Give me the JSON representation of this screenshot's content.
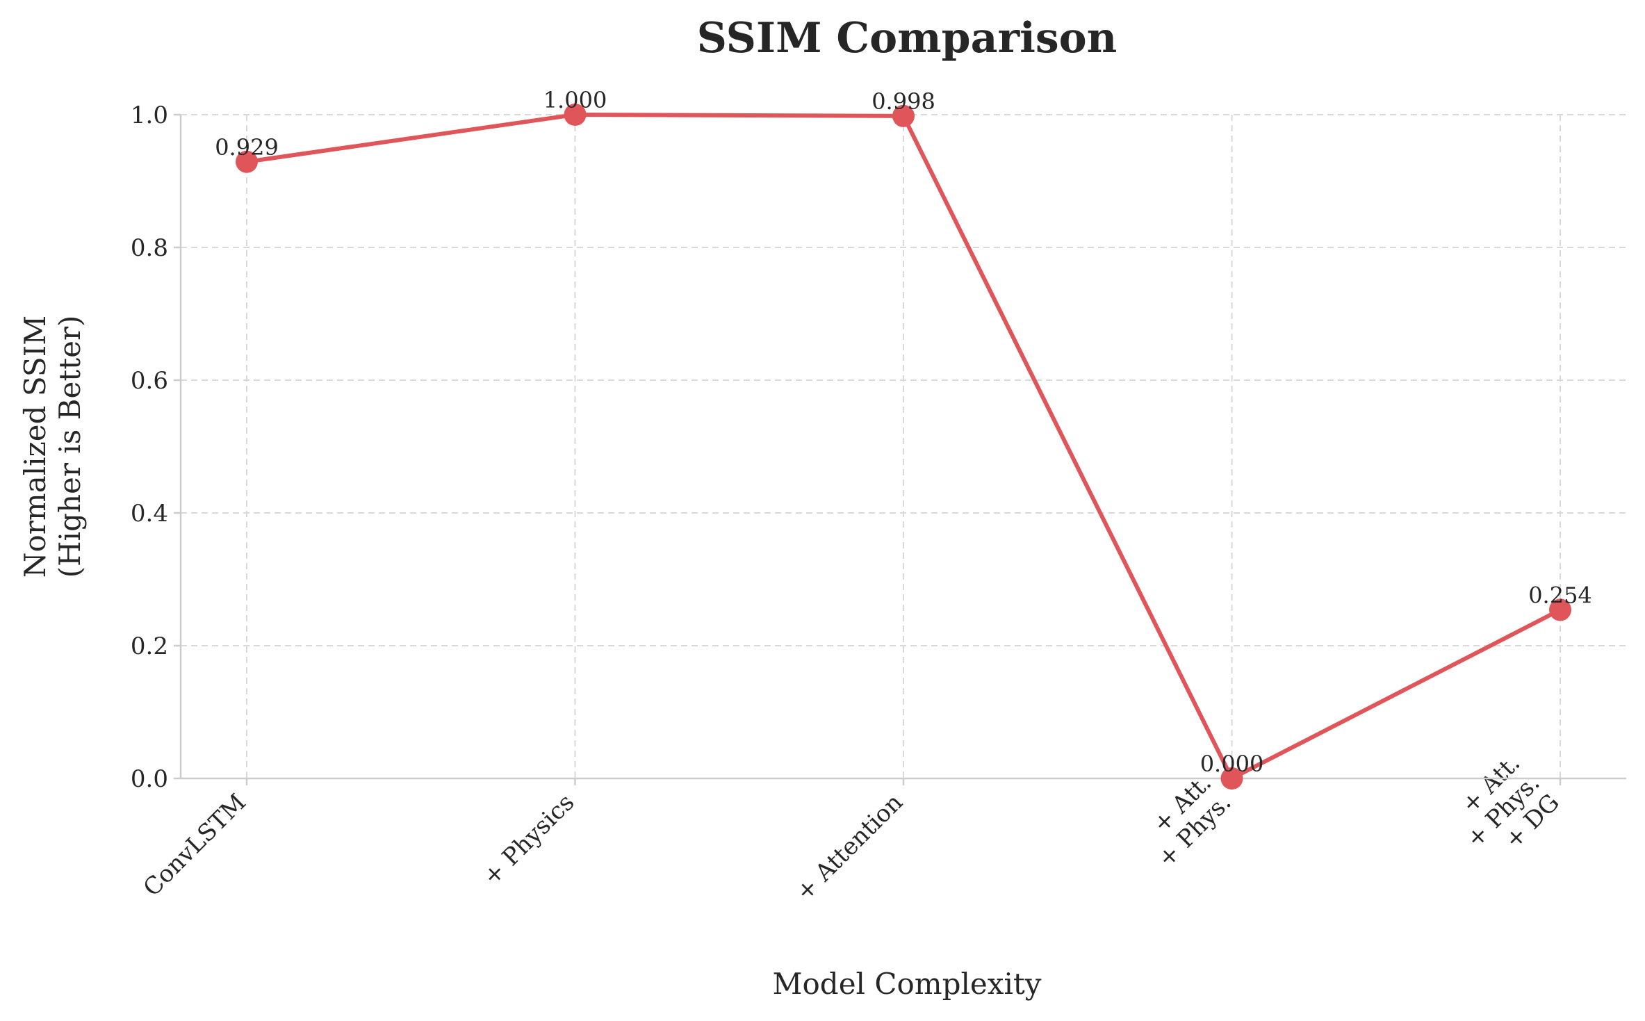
{
  "chart_data": {
    "type": "line",
    "title": "SSIM Comparison",
    "xlabel": "Model Complexity",
    "ylabel_lines": [
      "Normalized SSIM",
      "(Higher is Better)"
    ],
    "categories": [
      [
        "ConvLSTM"
      ],
      [
        "+ Physics"
      ],
      [
        "+ Attention"
      ],
      [
        "+ Att.",
        "+ Phys."
      ],
      [
        "+ Att.",
        "+ Phys.",
        "+ DG"
      ]
    ],
    "series": [
      {
        "values": [
          0.929,
          1.0,
          0.998,
          0.0,
          0.254
        ]
      }
    ],
    "data_labels": [
      "0.929",
      "1.000",
      "0.998",
      "0.000",
      "0.254"
    ],
    "ylim": [
      0,
      1
    ],
    "yticks": [
      "0.0",
      "0.2",
      "0.4",
      "0.6",
      "0.8",
      "1.0"
    ],
    "grid": true,
    "colors": {
      "line": "#e0555a",
      "grid": "#d9d9d9",
      "axis": "#cccccc",
      "text": "#262626"
    }
  }
}
